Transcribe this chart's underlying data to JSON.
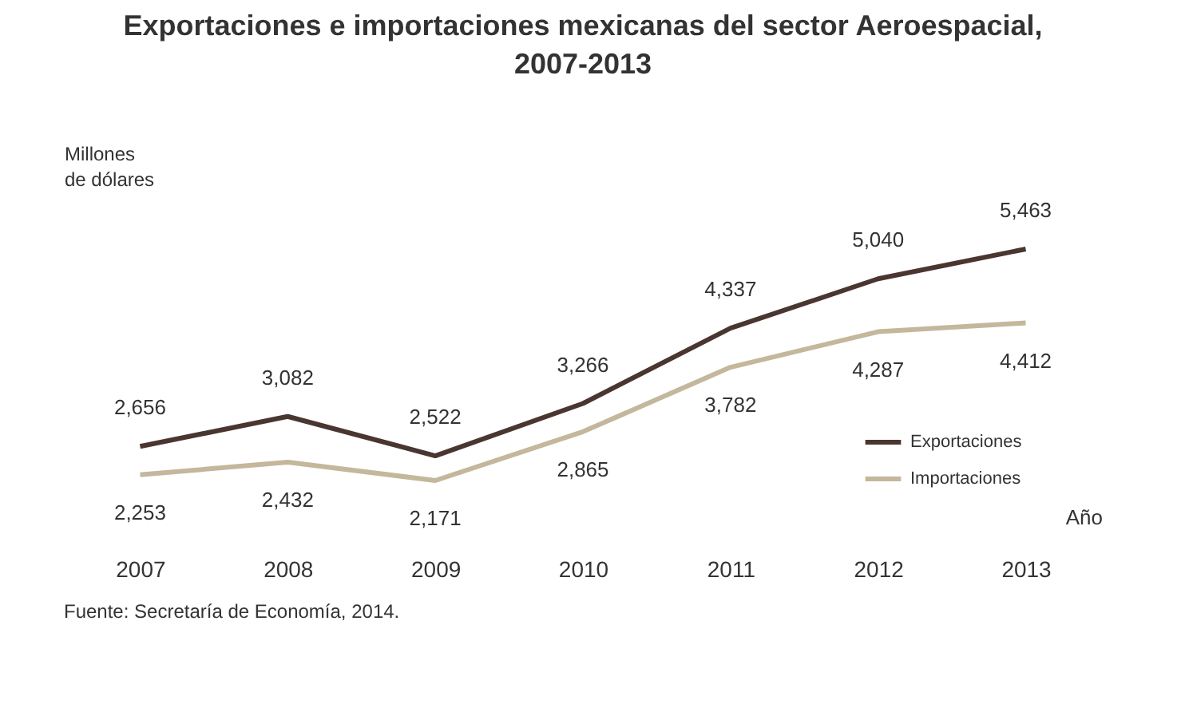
{
  "chart_data": {
    "type": "line",
    "title": "Exportaciones e importaciones mexicanas del sector Aeroespacial, 2007-2013",
    "ylabel": "Millones de dólares",
    "xlabel": "Año",
    "categories": [
      "2007",
      "2008",
      "2009",
      "2010",
      "2011",
      "2012",
      "2013"
    ],
    "series": [
      {
        "name": "Exportaciones",
        "color": "#4a3631",
        "values": [
          2656,
          3082,
          2522,
          3266,
          4337,
          5040,
          5463
        ],
        "value_labels": [
          "2,656",
          "3,082",
          "2,522",
          "3,266",
          "4,337",
          "5,040",
          "5,463"
        ]
      },
      {
        "name": "Importaciones",
        "color": "#c4b79c",
        "values": [
          2253,
          2432,
          2171,
          2865,
          3782,
          4287,
          4412
        ],
        "value_labels": [
          "2,253",
          "2,432",
          "2,171",
          "2,865",
          "3,782",
          "4,287",
          "4,412"
        ]
      }
    ],
    "legend": "bottom right",
    "marker": "none",
    "line_style": "solid",
    "grid": false,
    "annotations": [
      "Fuente: Secretaría de Economía, 2014."
    ]
  }
}
